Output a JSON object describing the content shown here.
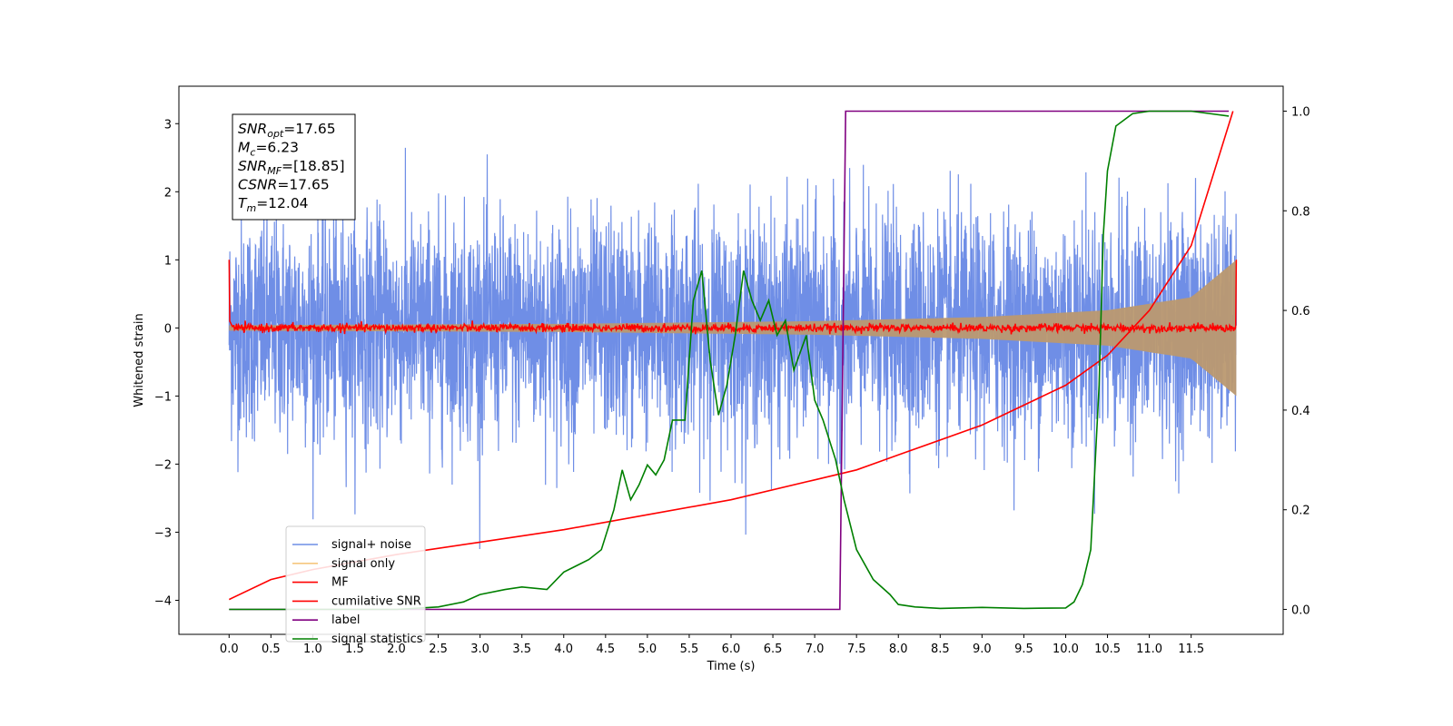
{
  "chart_data": {
    "type": "line",
    "xlabel": "Time (s)",
    "ylabel": "Whitened strain",
    "xlim": [
      -0.6,
      12.6
    ],
    "ylim": [
      -4.5,
      3.55
    ],
    "y2lim": [
      -0.05,
      1.05
    ],
    "xticks": [
      0.0,
      0.5,
      1.0,
      1.5,
      2.0,
      2.5,
      3.0,
      3.5,
      4.0,
      4.5,
      5.0,
      5.5,
      6.0,
      6.5,
      7.0,
      7.5,
      8.0,
      8.5,
      9.0,
      9.5,
      10.0,
      10.5,
      11.0,
      11.5
    ],
    "xtick_labels": [
      "0.0",
      "0.5",
      "1.0",
      "1.5",
      "2.0",
      "2.5",
      "3.0",
      "3.5",
      "4.0",
      "4.5",
      "5.0",
      "5.5",
      "6.0",
      "6.5",
      "7.0",
      "7.5",
      "8.0",
      "8.5",
      "9.0",
      "9.5",
      "10.0",
      "10.5",
      "11.0",
      "11.5"
    ],
    "yticks": [
      -4,
      -3,
      -2,
      -1,
      0,
      1,
      2,
      3
    ],
    "ytick_labels": [
      "−4",
      "−3",
      "−2",
      "−1",
      "0",
      "1",
      "2",
      "3"
    ],
    "y2ticks": [
      0.0,
      0.2,
      0.4,
      0.6,
      0.8,
      1.0
    ],
    "y2tick_labels": [
      "0.0",
      "0.2",
      "0.4",
      "0.6",
      "0.8",
      "1.0"
    ],
    "grid": false,
    "legend_position": "lower-left",
    "annotation": {
      "lines": [
        {
          "main": "SNR",
          "sub": "opt",
          "rest": "=17.65"
        },
        {
          "main": "M",
          "sub": "c",
          "rest": "=6.23"
        },
        {
          "main": "SNR",
          "sub": "MF",
          "rest": "=[18.85]"
        },
        {
          "main": "CSNR",
          "sub": "",
          "rest": "=17.65"
        },
        {
          "main": "T",
          "sub": "m",
          "rest": "=12.04"
        }
      ]
    },
    "series": [
      {
        "name": "signal+ noise",
        "color": "#6f8ee6",
        "axis": "left",
        "style": "noise",
        "amplitude_std": 0.85,
        "peak_range": [
          -3.3,
          3.2
        ],
        "t_range": [
          0.0,
          12.04
        ]
      },
      {
        "name": "signal only",
        "color": "#f5c77e",
        "axis": "left",
        "style": "chirp",
        "envelope": [
          [
            0.0,
            0.04
          ],
          [
            4.0,
            0.06
          ],
          [
            7.0,
            0.1
          ],
          [
            9.0,
            0.16
          ],
          [
            10.5,
            0.26
          ],
          [
            11.5,
            0.45
          ],
          [
            12.04,
            1.0
          ]
        ],
        "t_range": [
          0.0,
          12.04
        ]
      },
      {
        "name": "MF",
        "color": "#ff0000",
        "axis": "left",
        "style": "noise-trace",
        "start_value": 1.0,
        "mean": 0.0,
        "spread": 0.05,
        "end_value": 1.0,
        "t_range": [
          0.0,
          12.04
        ]
      },
      {
        "name": "cumilative SNR",
        "color": "#ff0000",
        "axis": "right",
        "x": [
          0.0,
          0.5,
          1.0,
          2.0,
          3.0,
          4.0,
          5.0,
          6.0,
          7.0,
          7.5,
          8.0,
          9.0,
          10.0,
          10.5,
          11.0,
          11.5,
          12.0
        ],
        "y": [
          0.02,
          0.06,
          0.08,
          0.11,
          0.135,
          0.16,
          0.19,
          0.22,
          0.26,
          0.28,
          0.31,
          0.37,
          0.45,
          0.51,
          0.6,
          0.73,
          1.0
        ]
      },
      {
        "name": "label",
        "color": "#800080",
        "axis": "right",
        "x": [
          0.0,
          7.3,
          7.37,
          11.95
        ],
        "y": [
          0.0,
          0.0,
          1.0,
          1.0
        ]
      },
      {
        "name": "signal statistics",
        "color": "#008000",
        "axis": "right",
        "x": [
          0.0,
          1.0,
          2.0,
          2.5,
          2.8,
          3.0,
          3.3,
          3.5,
          3.8,
          4.0,
          4.3,
          4.45,
          4.6,
          4.7,
          4.8,
          4.9,
          5.0,
          5.1,
          5.2,
          5.3,
          5.45,
          5.55,
          5.65,
          5.75,
          5.85,
          5.95,
          6.05,
          6.15,
          6.25,
          6.35,
          6.45,
          6.55,
          6.65,
          6.75,
          6.9,
          7.0,
          7.1,
          7.25,
          7.35,
          7.5,
          7.7,
          7.9,
          8.0,
          8.2,
          8.5,
          9.0,
          9.5,
          10.0,
          10.1,
          10.2,
          10.3,
          10.4,
          10.45,
          10.5,
          10.6,
          10.8,
          11.0,
          11.5,
          11.95
        ],
        "y": [
          0.0,
          0.0,
          0.0,
          0.005,
          0.015,
          0.03,
          0.04,
          0.045,
          0.04,
          0.075,
          0.1,
          0.12,
          0.2,
          0.28,
          0.22,
          0.25,
          0.29,
          0.27,
          0.3,
          0.38,
          0.38,
          0.62,
          0.68,
          0.5,
          0.39,
          0.45,
          0.55,
          0.68,
          0.62,
          0.58,
          0.62,
          0.55,
          0.58,
          0.48,
          0.55,
          0.42,
          0.38,
          0.3,
          0.22,
          0.12,
          0.06,
          0.03,
          0.01,
          0.005,
          0.002,
          0.004,
          0.002,
          0.003,
          0.015,
          0.05,
          0.12,
          0.45,
          0.75,
          0.88,
          0.97,
          0.995,
          1.0,
          1.0,
          0.99
        ]
      }
    ]
  }
}
